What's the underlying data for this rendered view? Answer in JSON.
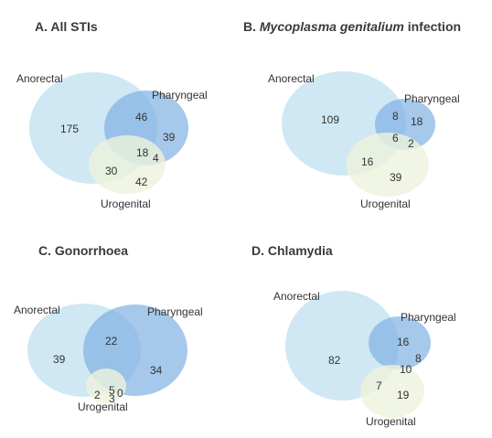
{
  "colors": {
    "anorectal": "#cfe8f4",
    "pharyngeal": "#7fb1e3",
    "urogenital": "#eef2dc",
    "text": "#333333",
    "title": "#3a3a3a"
  },
  "panels": [
    {
      "title_prefix": "A.",
      "title_organism": "",
      "title_suffix": "All STIs",
      "labels": {
        "anorectal": "Anorectal",
        "pharyngeal": "Pharyngeal",
        "urogenital": "Urogenital"
      },
      "counts": {
        "anorectal_only": "175",
        "pharyngeal_only": "39",
        "urogenital_only": "42",
        "anorectal_pharyngeal": "46",
        "anorectal_urogenital": "30",
        "pharyngeal_urogenital": "4",
        "all_three": "18"
      }
    },
    {
      "title_prefix": "B.",
      "title_organism": "Mycoplasma genitalium",
      "title_suffix": "infection",
      "labels": {
        "anorectal": "Anorectal",
        "pharyngeal": "Pharyngeal",
        "urogenital": "Urogenital"
      },
      "counts": {
        "anorectal_only": "109",
        "pharyngeal_only": "18",
        "urogenital_only": "39",
        "anorectal_pharyngeal": "8",
        "anorectal_urogenital": "16",
        "pharyngeal_urogenital": "2",
        "all_three": "6"
      }
    },
    {
      "title_prefix": "C.",
      "title_organism": "",
      "title_suffix": "Gonorrhoea",
      "labels": {
        "anorectal": "Anorectal",
        "pharyngeal": "Pharyngeal",
        "urogenital": "Urogenital"
      },
      "counts": {
        "anorectal_only": "39",
        "pharyngeal_only": "34",
        "urogenital_only": "3",
        "anorectal_pharyngeal": "22",
        "anorectal_urogenital": "2",
        "pharyngeal_urogenital": "0",
        "all_three": "5"
      }
    },
    {
      "title_prefix": "D.",
      "title_organism": "",
      "title_suffix": "Chlamydia",
      "labels": {
        "anorectal": "Anorectal",
        "pharyngeal": "Pharyngeal",
        "urogenital": "Urogenital"
      },
      "counts": {
        "anorectal_only": "82",
        "pharyngeal_only": "8",
        "urogenital_only": "19",
        "anorectal_pharyngeal": "16",
        "anorectal_urogenital": "7",
        "pharyngeal_urogenital": "",
        "all_three": "10"
      }
    }
  ]
}
